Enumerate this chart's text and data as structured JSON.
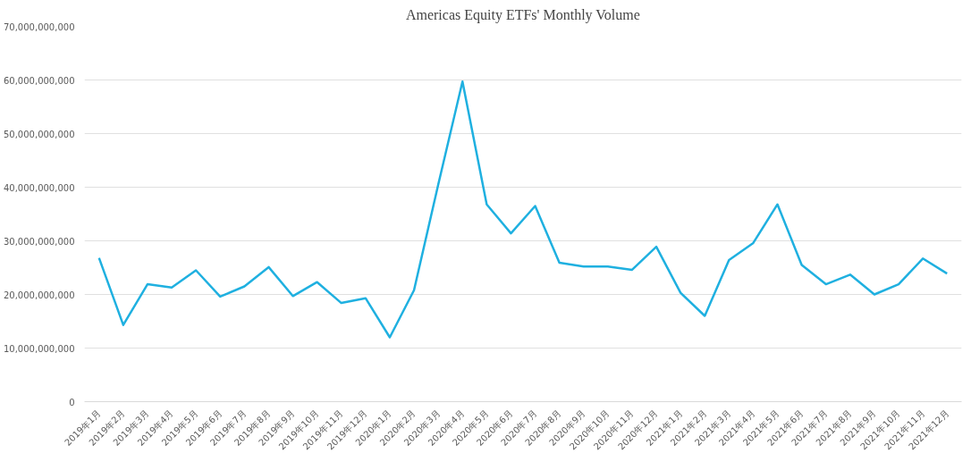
{
  "chart_data": {
    "type": "line",
    "title": "Americas Equity ETFs' Monthly Volume",
    "categories": [
      "2019年1月",
      "2019年2月",
      "2019年3月",
      "2019年4月",
      "2019年5月",
      "2019年6月",
      "2019年7月",
      "2019年8月",
      "2019年9月",
      "2019年10月",
      "2019年11月",
      "2019年12月",
      "2020年1月",
      "2020年2月",
      "2020年3月",
      "2020年4月",
      "2020年5月",
      "2020年6月",
      "2020年7月",
      "2020年8月",
      "2020年9月",
      "2020年10月",
      "2020年11月",
      "2020年12月",
      "2021年1月",
      "2021年2月",
      "2021年3月",
      "2021年4月",
      "2021年5月",
      "2021年6月",
      "2021年7月",
      "2021年8月",
      "2021年9月",
      "2021年10月",
      "2021年11月",
      "2021年12月"
    ],
    "series": [
      {
        "color": "#1fb0e0",
        "values": [
          26800000000,
          14300000000,
          21900000000,
          21300000000,
          24500000000,
          19600000000,
          21500000000,
          25100000000,
          19700000000,
          22300000000,
          18400000000,
          19300000000,
          12000000000,
          20800000000,
          40500000000,
          59700000000,
          36800000000,
          31400000000,
          36500000000,
          25900000000,
          25200000000,
          25200000000,
          24600000000,
          28900000000,
          20300000000,
          16000000000,
          26400000000,
          29600000000,
          36800000000,
          25500000000,
          21900000000,
          23700000000,
          20000000000,
          21900000000,
          26700000000,
          23900000000
        ]
      }
    ],
    "ylim": [
      0,
      70000000000
    ],
    "yticks": [
      {
        "value": 0,
        "label": "0"
      },
      {
        "value": 10000000000,
        "label": "10,000,000,000"
      },
      {
        "value": 20000000000,
        "label": "20,000,000,000"
      },
      {
        "value": 30000000000,
        "label": "30,000,000,000"
      },
      {
        "value": 40000000000,
        "label": "40,000,000,000"
      },
      {
        "value": 50000000000,
        "label": "50,000,000,000"
      },
      {
        "value": 60000000000,
        "label": "60,000,000,000"
      },
      {
        "value": 70000000000,
        "label": "70,000,000,000"
      }
    ],
    "grid": "y",
    "marker": "none",
    "line_style": "solid"
  }
}
